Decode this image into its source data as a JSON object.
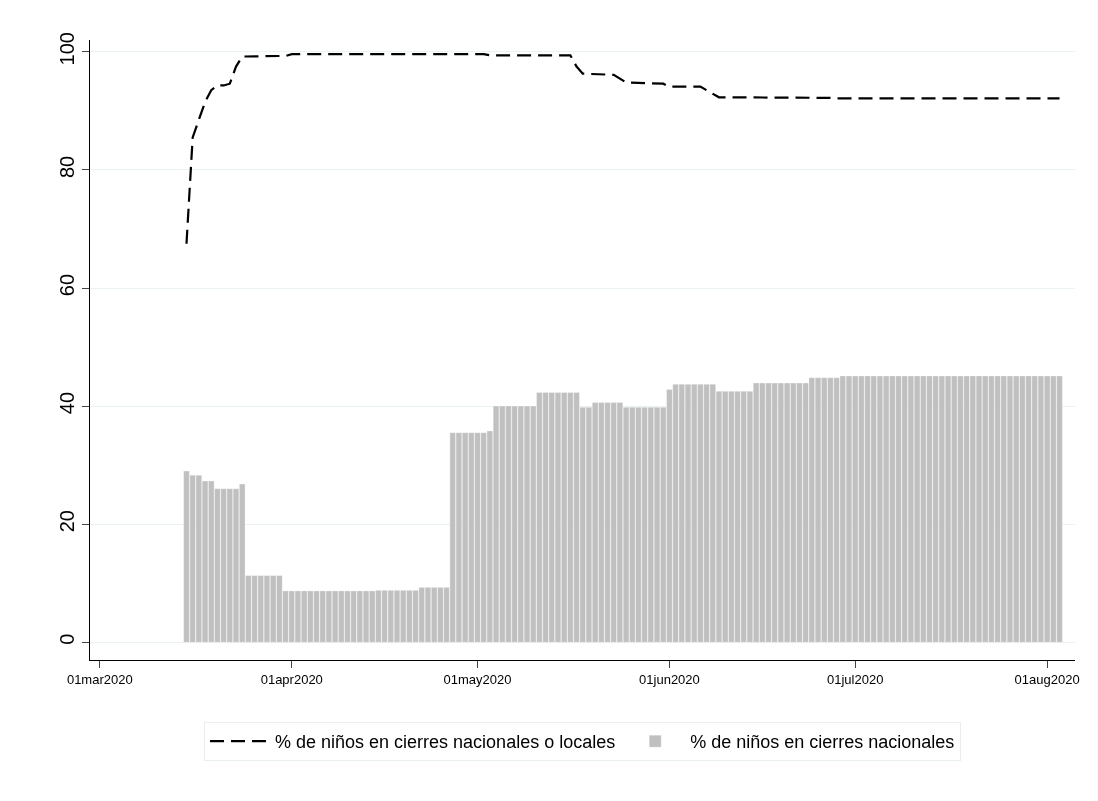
{
  "chart_data": {
    "type": "bar",
    "x": [
      "2020-03-15",
      "2020-03-16",
      "2020-03-17",
      "2020-03-18",
      "2020-03-19",
      "2020-03-20",
      "2020-03-21",
      "2020-03-22",
      "2020-03-23",
      "2020-03-24",
      "2020-03-25",
      "2020-03-26",
      "2020-03-27",
      "2020-03-28",
      "2020-03-29",
      "2020-03-30",
      "2020-03-31",
      "2020-04-01",
      "2020-04-02",
      "2020-04-03",
      "2020-04-04",
      "2020-04-05",
      "2020-04-06",
      "2020-04-07",
      "2020-04-08",
      "2020-04-09",
      "2020-04-10",
      "2020-04-11",
      "2020-04-12",
      "2020-04-13",
      "2020-04-14",
      "2020-04-15",
      "2020-04-16",
      "2020-04-17",
      "2020-04-18",
      "2020-04-19",
      "2020-04-20",
      "2020-04-21",
      "2020-04-22",
      "2020-04-23",
      "2020-04-24",
      "2020-04-25",
      "2020-04-26",
      "2020-04-27",
      "2020-04-28",
      "2020-04-29",
      "2020-04-30",
      "2020-05-01",
      "2020-05-02",
      "2020-05-03",
      "2020-05-04",
      "2020-05-05",
      "2020-05-06",
      "2020-05-07",
      "2020-05-08",
      "2020-05-09",
      "2020-05-10",
      "2020-05-11",
      "2020-05-12",
      "2020-05-13",
      "2020-05-14",
      "2020-05-15",
      "2020-05-16",
      "2020-05-17",
      "2020-05-18",
      "2020-05-19",
      "2020-05-20",
      "2020-05-21",
      "2020-05-22",
      "2020-05-23",
      "2020-05-24",
      "2020-05-25",
      "2020-05-26",
      "2020-05-27",
      "2020-05-28",
      "2020-05-29",
      "2020-05-30",
      "2020-05-31",
      "2020-06-01",
      "2020-06-02",
      "2020-06-03",
      "2020-06-04",
      "2020-06-05",
      "2020-06-06",
      "2020-06-07",
      "2020-06-08",
      "2020-06-09",
      "2020-06-10",
      "2020-06-11",
      "2020-06-12",
      "2020-06-13",
      "2020-06-14",
      "2020-06-15",
      "2020-06-16",
      "2020-06-17",
      "2020-06-18",
      "2020-06-19",
      "2020-06-20",
      "2020-06-21",
      "2020-06-22",
      "2020-06-23",
      "2020-06-24",
      "2020-06-25",
      "2020-06-26",
      "2020-06-27",
      "2020-06-28",
      "2020-06-29",
      "2020-06-30",
      "2020-07-01",
      "2020-07-02",
      "2020-07-03",
      "2020-07-04",
      "2020-07-05",
      "2020-07-06",
      "2020-07-07",
      "2020-07-08",
      "2020-07-09",
      "2020-07-10",
      "2020-07-11",
      "2020-07-12",
      "2020-07-13",
      "2020-07-14",
      "2020-07-15",
      "2020-07-16",
      "2020-07-17",
      "2020-07-18",
      "2020-07-19",
      "2020-07-20",
      "2020-07-21",
      "2020-07-22",
      "2020-07-23",
      "2020-07-24",
      "2020-07-25",
      "2020-07-26",
      "2020-07-27",
      "2020-07-28",
      "2020-07-29",
      "2020-07-30",
      "2020-07-31",
      "2020-08-01",
      "2020-08-02",
      "2020-08-03"
    ],
    "series": [
      {
        "type": "line",
        "name": "% de niños en cierres nacionales o locales",
        "color": "#000000",
        "line_style": "dashed",
        "x": [
          "2020-03-15",
          "2020-03-16",
          "2020-03-17",
          "2020-03-18",
          "2020-03-19",
          "2020-03-20",
          "2020-03-21",
          "2020-03-22",
          "2020-03-23",
          "2020-03-24",
          "2020-03-31",
          "2020-04-01",
          "2020-05-02",
          "2020-05-03",
          "2020-05-16",
          "2020-05-17",
          "2020-05-18",
          "2020-05-23",
          "2020-05-25",
          "2020-05-31",
          "2020-06-01",
          "2020-06-06",
          "2020-06-07",
          "2020-06-09",
          "2020-06-27",
          "2020-06-28",
          "2020-08-03"
        ],
        "values": [
          67.5,
          85.5,
          88.5,
          91.5,
          93.5,
          94.3,
          94.3,
          94.6,
          97.5,
          99.2,
          99.3,
          99.6,
          99.6,
          99.4,
          99.4,
          97.5,
          96.3,
          96.1,
          94.8,
          94.6,
          94.1,
          94.1,
          93.5,
          92.3,
          92.2,
          92.1,
          92.1
        ]
      },
      {
        "name": "% de niños en cierres nacionales",
        "color": "#c0c0c0",
        "values": [
          29,
          28.3,
          28.3,
          27.3,
          27.3,
          26,
          26,
          26,
          26,
          26.8,
          11.3,
          11.3,
          11.3,
          11.3,
          11.3,
          11.3,
          8.7,
          8.7,
          8.7,
          8.7,
          8.7,
          8.7,
          8.7,
          8.7,
          8.7,
          8.7,
          8.7,
          8.7,
          8.7,
          8.7,
          8.7,
          8.8,
          8.8,
          8.8,
          8.8,
          8.8,
          8.8,
          8.8,
          9.3,
          9.3,
          9.3,
          9.3,
          9.3,
          35.5,
          35.5,
          35.5,
          35.5,
          35.5,
          35.5,
          35.8,
          40,
          40,
          40,
          40,
          40,
          40,
          40,
          42.3,
          42.3,
          42.3,
          42.3,
          42.3,
          42.3,
          42.3,
          39.8,
          39.8,
          40.6,
          40.6,
          40.6,
          40.6,
          40.6,
          39.8,
          39.8,
          39.8,
          39.8,
          39.8,
          39.8,
          39.8,
          42.8,
          43.7,
          43.7,
          43.7,
          43.7,
          43.7,
          43.7,
          43.7,
          42.5,
          42.5,
          42.5,
          42.5,
          42.5,
          42.5,
          43.9,
          43.9,
          43.9,
          43.9,
          43.9,
          43.9,
          43.9,
          43.9,
          43.9,
          44.8,
          44.8,
          44.8,
          44.8,
          44.8,
          45.1,
          45.1,
          45.1,
          45.1,
          45.1,
          45.1,
          45.1,
          45.1,
          45.1,
          45.1,
          45.1,
          45.1,
          45.1,
          45.1,
          45.1,
          45.1,
          45.1,
          45.1,
          45.1,
          45.1,
          45.1,
          45.1,
          45.1,
          45.1,
          45.1,
          45.1,
          45.1,
          45.1,
          45.1,
          45.1,
          45.1,
          45.1,
          45.1,
          45.1,
          45.1,
          45.1
        ]
      }
    ],
    "xlim": [
      "2020-02-28T10:00",
      "2020-08-05T12:00"
    ],
    "xticks": [
      {
        "value": "2020-03-01",
        "label": "01mar2020"
      },
      {
        "value": "2020-04-01",
        "label": "01apr2020"
      },
      {
        "value": "2020-05-01",
        "label": "01may2020"
      },
      {
        "value": "2020-06-01",
        "label": "01jun2020"
      },
      {
        "value": "2020-07-01",
        "label": "01jul2020"
      },
      {
        "value": "2020-08-01",
        "label": "01aug2020"
      }
    ],
    "ylim": [
      -3,
      102
    ],
    "yticks": [
      0,
      20,
      40,
      60,
      80,
      100
    ],
    "grid": "y",
    "legend": "bottom"
  }
}
